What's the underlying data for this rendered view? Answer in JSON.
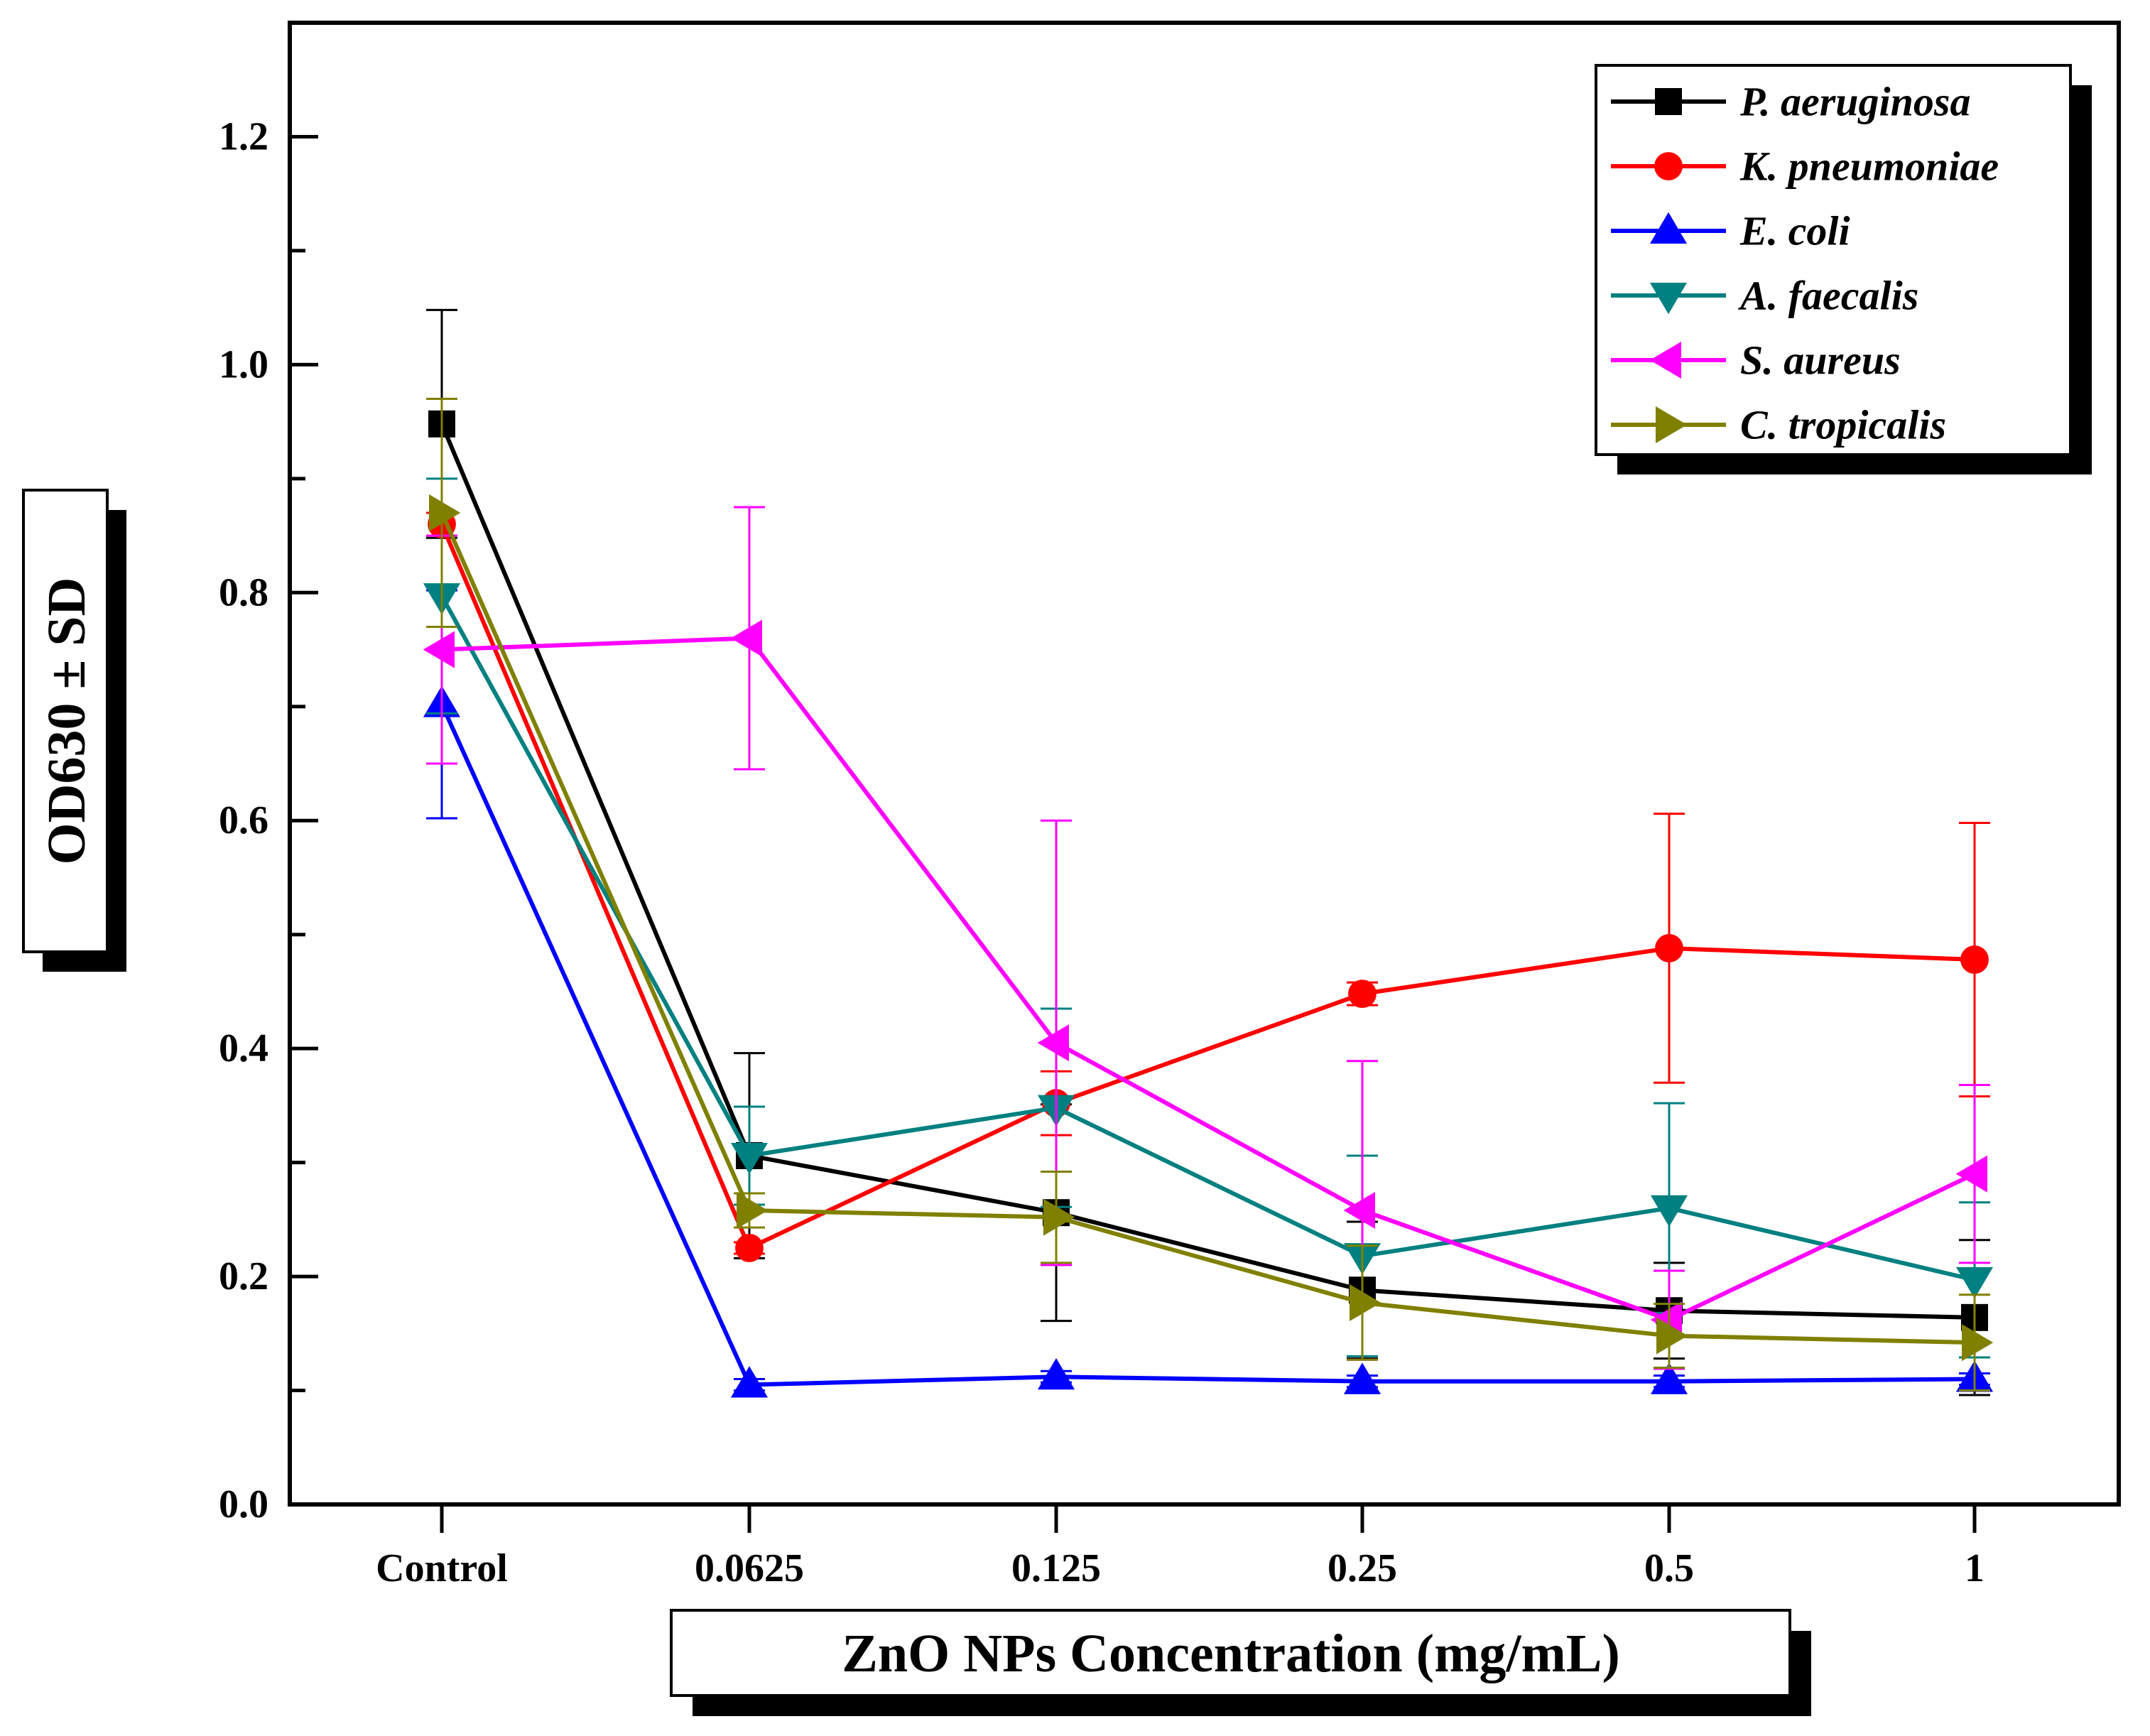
{
  "chart_data": {
    "type": "line",
    "title": "",
    "xlabel": "ZnO NPs Concentration (mg/mL)",
    "ylabel": "OD630 ± SD",
    "categories": [
      "Control",
      "0.0625",
      "0.125",
      "0.25",
      "0.5",
      "1"
    ],
    "ylim": [
      0,
      1.3
    ],
    "yticks": [
      "0.0",
      "0.2",
      "0.4",
      "0.6",
      "0.8",
      "1.0",
      "1.2"
    ],
    "legend_position": "top-right",
    "series": [
      {
        "name": "P. aeruginosa",
        "color": "#000000",
        "marker": "square",
        "values": [
          0.948,
          0.306,
          0.256,
          0.188,
          0.17,
          0.164
        ],
        "errors": [
          0.1,
          0.09,
          0.095,
          0.06,
          0.042,
          0.068
        ]
      },
      {
        "name": "K. pneumoniae",
        "color": "#ff0000",
        "marker": "circle",
        "values": [
          0.86,
          0.225,
          0.352,
          0.448,
          0.488,
          0.478
        ],
        "errors": [
          0.01,
          0.005,
          0.028,
          0.01,
          0.118,
          0.12
        ]
      },
      {
        "name": "E. coli",
        "color": "#0000ff",
        "marker": "triangle-up",
        "values": [
          0.702,
          0.105,
          0.112,
          0.108,
          0.108,
          0.11
        ],
        "errors": [
          0.1,
          0.005,
          0.005,
          0.005,
          0.005,
          0.005
        ]
      },
      {
        "name": "A. faecalis",
        "color": "#008080",
        "marker": "triangle-down",
        "values": [
          0.797,
          0.306,
          0.348,
          0.218,
          0.26,
          0.197
        ],
        "errors": [
          0.103,
          0.043,
          0.087,
          0.088,
          0.092,
          0.068
        ]
      },
      {
        "name": "S. aureus",
        "color": "#ff00ff",
        "marker": "triangle-left",
        "values": [
          0.75,
          0.76,
          0.405,
          0.258,
          0.162,
          0.29
        ],
        "errors": [
          0.1,
          0.115,
          0.195,
          0.131,
          0.043,
          0.078
        ]
      },
      {
        "name": "C. tropicalis",
        "color": "#808000",
        "marker": "triangle-right",
        "values": [
          0.87,
          0.258,
          0.252,
          0.177,
          0.148,
          0.142
        ],
        "errors": [
          0.1,
          0.015,
          0.04,
          0.05,
          0.028,
          0.042
        ]
      }
    ]
  }
}
